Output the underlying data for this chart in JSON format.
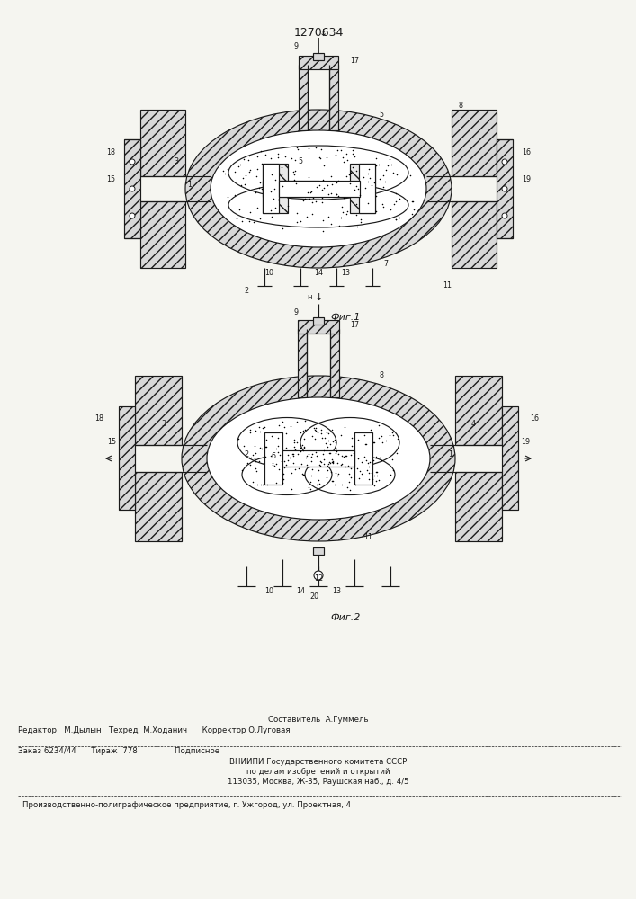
{
  "patent_number": "1270634",
  "fig1_caption": "Фиг.1",
  "fig2_caption": "Фиг.2",
  "footer_line1_center": "Составитель  А.Гуммель",
  "footer_line2": "Редактор   М.Дылын   Техред  М.Хoданич      Корректор О.Луговая",
  "footer_line3": "Заказ 6234/44      Тираж  778               Подписное",
  "footer_line4": "ВНИИПИ Государственного комитета СССР",
  "footer_line5": "по делам изобретений и открытий",
  "footer_line6": "113035, Москва, Ж-35, Раушская наб., д. 4/5",
  "footer_line7": "Производственно-полиграфическое предприятие, г. Ужгород, ул. Проектная, 4",
  "bg_color": "#f5f5f0",
  "line_color": "#1a1a1a",
  "hatch_color": "#1a1a1a"
}
